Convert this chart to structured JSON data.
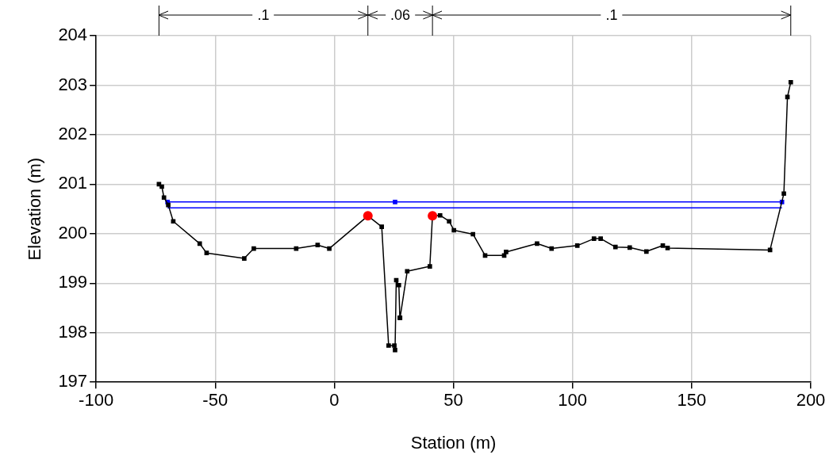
{
  "chart_data": {
    "type": "line",
    "xlabel": "Station (m)",
    "ylabel": "Elevation (m)",
    "xlim": [
      -100,
      200
    ],
    "xticks": [
      -100,
      -50,
      0,
      50,
      100,
      150,
      200
    ],
    "ylim": [
      197,
      204
    ],
    "yticks": [
      197,
      198,
      199,
      200,
      201,
      202,
      203,
      204
    ],
    "grid": true,
    "legend": false,
    "annotations": [
      ".1",
      ".06",
      ".1"
    ],
    "series": [
      {
        "type": "line",
        "color": "#000000",
        "marker": "square",
        "x": [
          -73.6,
          -72.4,
          -71.5,
          -69.7,
          -67.6,
          -56.5,
          -53.6,
          -37.8,
          -33.8,
          -16.0,
          -7.0,
          -2.1,
          14.1,
          19.9,
          22.8,
          25.2,
          25.5,
          26.0,
          27.1,
          27.5,
          27.6,
          30.6,
          40.1,
          41.2,
          44.4,
          48.2,
          50.2,
          58.2,
          63.3,
          71.3,
          72.1,
          85.1,
          91.2,
          102.0,
          109.0,
          111.8,
          118.0,
          124.0,
          131.0,
          137.9,
          139.9,
          182.9,
          188.7,
          190.2,
          191.6
        ],
        "values": [
          201.0,
          200.95,
          200.73,
          200.58,
          200.25,
          199.8,
          199.61,
          199.5,
          199.7,
          199.7,
          199.77,
          199.7,
          200.36,
          200.14,
          197.74,
          197.74,
          197.65,
          199.06,
          198.96,
          198.3,
          198.3,
          199.24,
          199.34,
          200.36,
          200.37,
          200.25,
          200.07,
          199.99,
          199.56,
          199.56,
          199.63,
          199.8,
          199.7,
          199.76,
          199.9,
          199.9,
          199.73,
          199.72,
          199.64,
          199.76,
          199.71,
          199.67,
          200.81,
          202.76,
          203.06
        ]
      },
      {
        "type": "line",
        "color": "#0000ff",
        "marker": "square",
        "x": [
          -70.0,
          25.5,
          187.9
        ],
        "values": [
          200.64,
          200.64,
          200.64
        ]
      },
      {
        "type": "line",
        "color": "#0000ff",
        "marker": "none",
        "x": [
          -70.0,
          187.9
        ],
        "values": [
          200.52,
          200.52
        ]
      },
      {
        "type": "scatter",
        "color": "#ff0000",
        "marker": "circle",
        "x": [
          14.1,
          41.2
        ],
        "values": [
          200.36,
          200.36
        ]
      }
    ]
  }
}
